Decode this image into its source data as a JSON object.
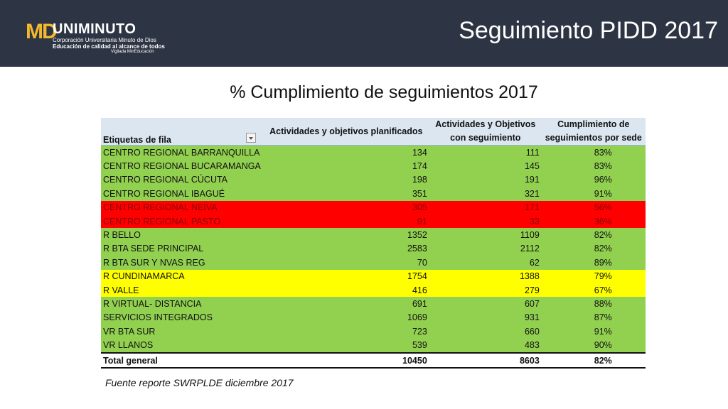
{
  "header": {
    "title": "Seguimiento PIDD 2017",
    "logo": {
      "md": "MD",
      "name": "UNIMINUTO",
      "line1": "Corporación Universitaria Minuto de Dios",
      "line2": "Educación de calidad al alcance de todos",
      "line3": "Vigilada MinEducación"
    }
  },
  "subtitle": "% Cumplimiento de seguimientos 2017",
  "table": {
    "headers": {
      "col1": "Etiquetas de fila",
      "col2": "Actividades y objetivos planificados",
      "col3_line1": "Actividades y Objetivos",
      "col3_line2": "con seguimiento",
      "col4_line1": "Cumplimiento de",
      "col4_line2": "seguimientos por sede"
    },
    "rows": [
      {
        "label": "CENTRO REGIONAL BARRANQUILLA",
        "planned": "134",
        "followed": "111",
        "pct": "83%",
        "status": "green"
      },
      {
        "label": "CENTRO REGIONAL BUCARAMANGA",
        "planned": "174",
        "followed": "145",
        "pct": "83%",
        "status": "green"
      },
      {
        "label": "CENTRO REGIONAL CÚCUTA",
        "planned": "198",
        "followed": "191",
        "pct": "96%",
        "status": "green"
      },
      {
        "label": "CENTRO REGIONAL IBAGUÉ",
        "planned": "351",
        "followed": "321",
        "pct": "91%",
        "status": "green"
      },
      {
        "label": "CENTRO REGIONAL NEIVA",
        "planned": "305",
        "followed": "171",
        "pct": "56%",
        "status": "red"
      },
      {
        "label": "CENTRO REGIONAL PASTO",
        "planned": "91",
        "followed": "33",
        "pct": "36%",
        "status": "red"
      },
      {
        "label": "R BELLO",
        "planned": "1352",
        "followed": "1109",
        "pct": "82%",
        "status": "green"
      },
      {
        "label": "R BTA SEDE PRINCIPAL",
        "planned": "2583",
        "followed": "2112",
        "pct": "82%",
        "status": "green"
      },
      {
        "label": "R BTA SUR Y NVAS REG",
        "planned": "70",
        "followed": "62",
        "pct": "89%",
        "status": "green"
      },
      {
        "label": "R CUNDINAMARCA",
        "planned": "1754",
        "followed": "1388",
        "pct": "79%",
        "status": "yellow"
      },
      {
        "label": "R VALLE",
        "planned": "416",
        "followed": "279",
        "pct": "67%",
        "status": "yellow"
      },
      {
        "label": "R VIRTUAL- DISTANCIA",
        "planned": "691",
        "followed": "607",
        "pct": "88%",
        "status": "green"
      },
      {
        "label": "SERVICIOS INTEGRADOS",
        "planned": "1069",
        "followed": "931",
        "pct": "87%",
        "status": "green"
      },
      {
        "label": "VR BTA SUR",
        "planned": "723",
        "followed": "660",
        "pct": "91%",
        "status": "green"
      },
      {
        "label": "VR LLANOS",
        "planned": "539",
        "followed": "483",
        "pct": "90%",
        "status": "green"
      }
    ],
    "total": {
      "label": "Total general",
      "planned": "10450",
      "followed": "8603",
      "pct": "82%"
    }
  },
  "source": "Fuente reporte SWRPLDE diciembre 2017",
  "colors": {
    "header_bar": "#2d3443",
    "green": "#92d050",
    "red": "#ff0000",
    "yellow": "#ffff00",
    "table_header": "#dce6f1"
  }
}
